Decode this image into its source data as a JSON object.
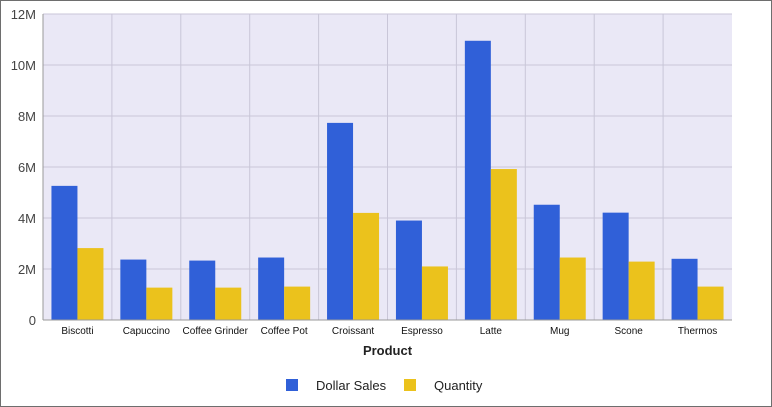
{
  "chart_data": {
    "type": "bar",
    "title": "",
    "xlabel": "Product",
    "ylabel": "",
    "categories": [
      "Biscotti",
      "Capuccino",
      "Coffee Grinder",
      "Coffee Pot",
      "Croissant",
      "Espresso",
      "Latte",
      "Mug",
      "Scone",
      "Thermos"
    ],
    "series": [
      {
        "name": "Dollar Sales",
        "color": "#3060D8",
        "values": [
          5.26,
          2.37,
          2.33,
          2.45,
          7.73,
          3.9,
          10.95,
          4.52,
          4.21,
          2.4
        ]
      },
      {
        "name": "Quantity",
        "color": "#EBC21C",
        "values": [
          2.82,
          1.27,
          1.27,
          1.31,
          4.2,
          2.1,
          5.92,
          2.45,
          2.29,
          1.31
        ]
      }
    ],
    "ylim": [
      0,
      12
    ],
    "yticks": [
      "0",
      "2M",
      "4M",
      "6M",
      "8M",
      "10M",
      "12M"
    ],
    "grid": true,
    "plot_background": "#EAE8F6",
    "grid_color": "#C9C6D8",
    "legend_position": "bottom-center"
  }
}
